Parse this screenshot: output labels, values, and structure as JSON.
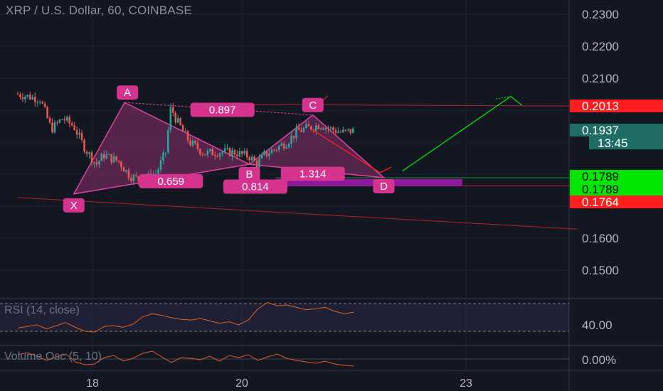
{
  "header": {
    "title": "XRP / U.S. Dollar, 60, COINBASE"
  },
  "colors": {
    "background": "#131722",
    "up": "#26a69a",
    "down": "#ef5350",
    "pattern": "#e040a0",
    "pattern_fill": "#8a2f6e",
    "label_bg": "#d6338f",
    "red_tag": "#ff1e1e",
    "green_tag": "#00e600",
    "price_tag": "#1e6e66",
    "rsi": "#e0601a",
    "target_zone": "#8b1a9a"
  },
  "chart_data": {
    "type": "candlestick",
    "title": "XRP / U.S. Dollar, 60, COINBASE",
    "x_tick_labels": [
      "18",
      "20",
      "23"
    ],
    "y_tick_labels": [
      "0.2300",
      "0.2200",
      "0.2100",
      "0.1600",
      "0.1500"
    ],
    "ylim": [
      0.141,
      0.2325
    ],
    "price_tags": [
      {
        "label": "0.2013",
        "value": 0.2013,
        "color": "red"
      },
      {
        "label": "0.1937",
        "value": 0.1937,
        "color": "teal"
      },
      {
        "label": "13:45",
        "value": 0.1895,
        "color": "teal"
      },
      {
        "label": "0.1789",
        "value": 0.1789,
        "color": "green"
      },
      {
        "label": "0.1789",
        "value": 0.1789,
        "color": "green"
      },
      {
        "label": "0.1764",
        "value": 0.1764,
        "color": "red"
      }
    ],
    "harmonic_pattern": {
      "points": [
        {
          "name": "X",
          "day": 17.75,
          "price": 0.1738
        },
        {
          "name": "A",
          "day": 18.43,
          "price": 0.2024
        },
        {
          "name": "B",
          "day": 20.1,
          "price": 0.1831
        },
        {
          "name": "C",
          "day": 20.95,
          "price": 0.1985
        },
        {
          "name": "D",
          "day": 21.9,
          "price": 0.1789
        }
      ],
      "ratios": [
        {
          "label": "0.897",
          "day": 19.74,
          "price": 0.2001
        },
        {
          "label": "0.659",
          "day": 19.05,
          "price": 0.1778
        },
        {
          "label": "0.814",
          "day": 20.18,
          "price": 0.1761
        },
        {
          "label": "1.314",
          "day": 20.95,
          "price": 0.1801
        }
      ]
    },
    "projection": {
      "down": [
        [
          20.95,
          0.1938
        ],
        [
          21.85,
          0.1805
        ],
        [
          22.0,
          0.1822
        ]
      ],
      "up": [
        [
          22.15,
          0.181
        ],
        [
          23.6,
          0.2043
        ],
        [
          23.75,
          0.2015
        ]
      ]
    },
    "target_zone": {
      "day_start": 20.45,
      "day_end": 22.95,
      "price_top": 0.1785,
      "price_bottom": 0.1762
    },
    "trend_line": [
      [
        17.0,
        0.1727
      ],
      [
        24.5,
        0.1628
      ]
    ],
    "resistance_line": [
      [
        19.95,
        0.2018
      ],
      [
        24.5,
        0.2013
      ]
    ],
    "rsi": {
      "label": "RSI (14, close)",
      "tick_labels": [
        "40.00"
      ],
      "values": [
        34,
        36,
        38,
        33,
        37,
        41,
        35,
        30,
        29,
        36,
        37,
        35,
        39,
        48,
        52,
        50,
        47,
        45,
        44,
        46,
        43,
        40,
        42,
        38,
        44,
        58,
        66,
        62,
        63,
        60,
        57,
        58,
        60,
        55,
        52,
        54
      ]
    },
    "volume_osc": {
      "label": "Volume Osc (5, 10)",
      "tick_labels": [
        "0.00%"
      ],
      "values": [
        12,
        18,
        8,
        -4,
        6,
        14,
        -8,
        -16,
        -14,
        4,
        10,
        -6,
        2,
        16,
        22,
        6,
        -10,
        4,
        2,
        -2,
        8,
        -6,
        10,
        4,
        12,
        -4,
        6,
        14,
        2,
        -4,
        -8,
        -12,
        -6,
        -14,
        -18,
        -20
      ]
    }
  }
}
